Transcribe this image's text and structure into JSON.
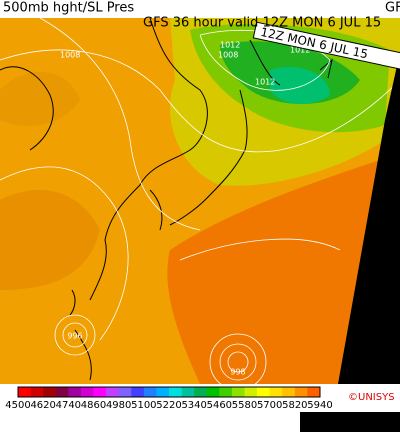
{
  "header": {
    "title": "500mb hght/SL Pres",
    "subtitle": "GFS 36 hour valid 12Z MON  6 JUL 15",
    "cut_label": "GF"
  },
  "banner": "12Z MON  6 JUL 15",
  "map": {
    "contour_labels": [
      "1012",
      "1008",
      "1012",
      "1012",
      "996",
      "998",
      "1008"
    ]
  },
  "colorbar": {
    "labels": [
      "4500",
      "4620",
      "4740",
      "4860",
      "4980",
      "5100",
      "5220",
      "5340",
      "5460",
      "5580",
      "5700",
      "5820",
      "5940"
    ],
    "colors": [
      "#ff0000",
      "#d00000",
      "#a00000",
      "#800040",
      "#a000a0",
      "#d000d0",
      "#ff00ff",
      "#c040ff",
      "#8060ff",
      "#4040ff",
      "#2080ff",
      "#00b0ff",
      "#00e0e0",
      "#00c0a0",
      "#00b050",
      "#00c000",
      "#40d000",
      "#90e000",
      "#d0f000",
      "#ffff00",
      "#ffe000",
      "#ffc000",
      "#ff9000",
      "#ff6000"
    ]
  },
  "credit": "©UNISYS"
}
